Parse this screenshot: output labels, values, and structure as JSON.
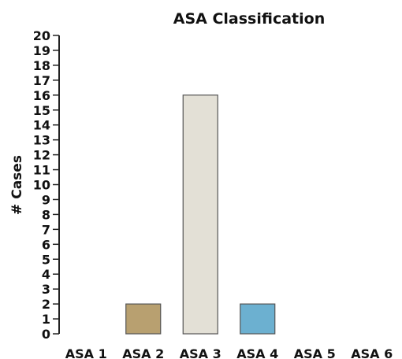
{
  "chart_data": {
    "type": "bar",
    "title": "ASA  Classification",
    "xlabel": "",
    "ylabel": "# Cases",
    "categories": [
      "ASA 1",
      "ASA 2",
      "ASA 3",
      "ASA 4",
      "ASA 5",
      "ASA 6"
    ],
    "values": [
      0,
      2,
      16,
      2,
      0,
      0
    ],
    "colors": [
      "#ffffff",
      "#b8a070",
      "#e3e0d6",
      "#6cb0d0",
      "#ffffff",
      "#ffffff"
    ],
    "ylim": [
      0,
      20
    ],
    "yticks": [
      "0",
      "1",
      "2",
      "3",
      "4",
      "5",
      "6",
      "7",
      "8",
      "9",
      "10",
      "11",
      "12",
      "13",
      "14",
      "15",
      "16",
      "17",
      "18",
      "19",
      "20"
    ],
    "grid": false,
    "legend": "none"
  }
}
